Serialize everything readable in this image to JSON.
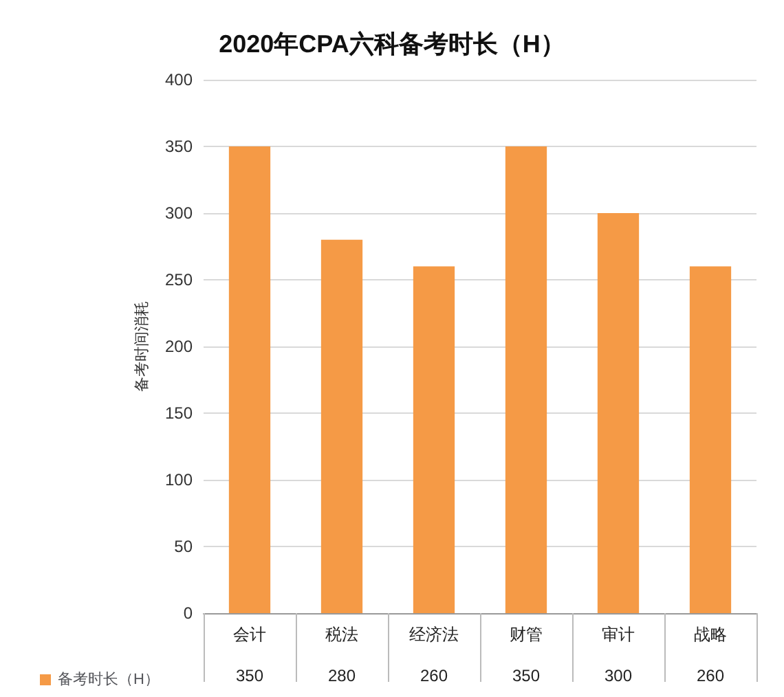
{
  "chart_data": {
    "type": "bar",
    "title": "2020年CPA六科备考时长（H）",
    "ylabel": "备考时间消耗",
    "categories": [
      "会计",
      "税法",
      "经济法",
      "财管",
      "审计",
      "战略"
    ],
    "series": [
      {
        "name": "备考时长（H）",
        "color": "#f59a46",
        "values": [
          350,
          280,
          260,
          350,
          300,
          260
        ]
      }
    ],
    "ylim": [
      0,
      400
    ],
    "yticks": [
      0,
      50,
      100,
      150,
      200,
      250,
      300,
      350,
      400
    ],
    "grid": "y",
    "legend": "bottom left",
    "data_labels": true
  }
}
